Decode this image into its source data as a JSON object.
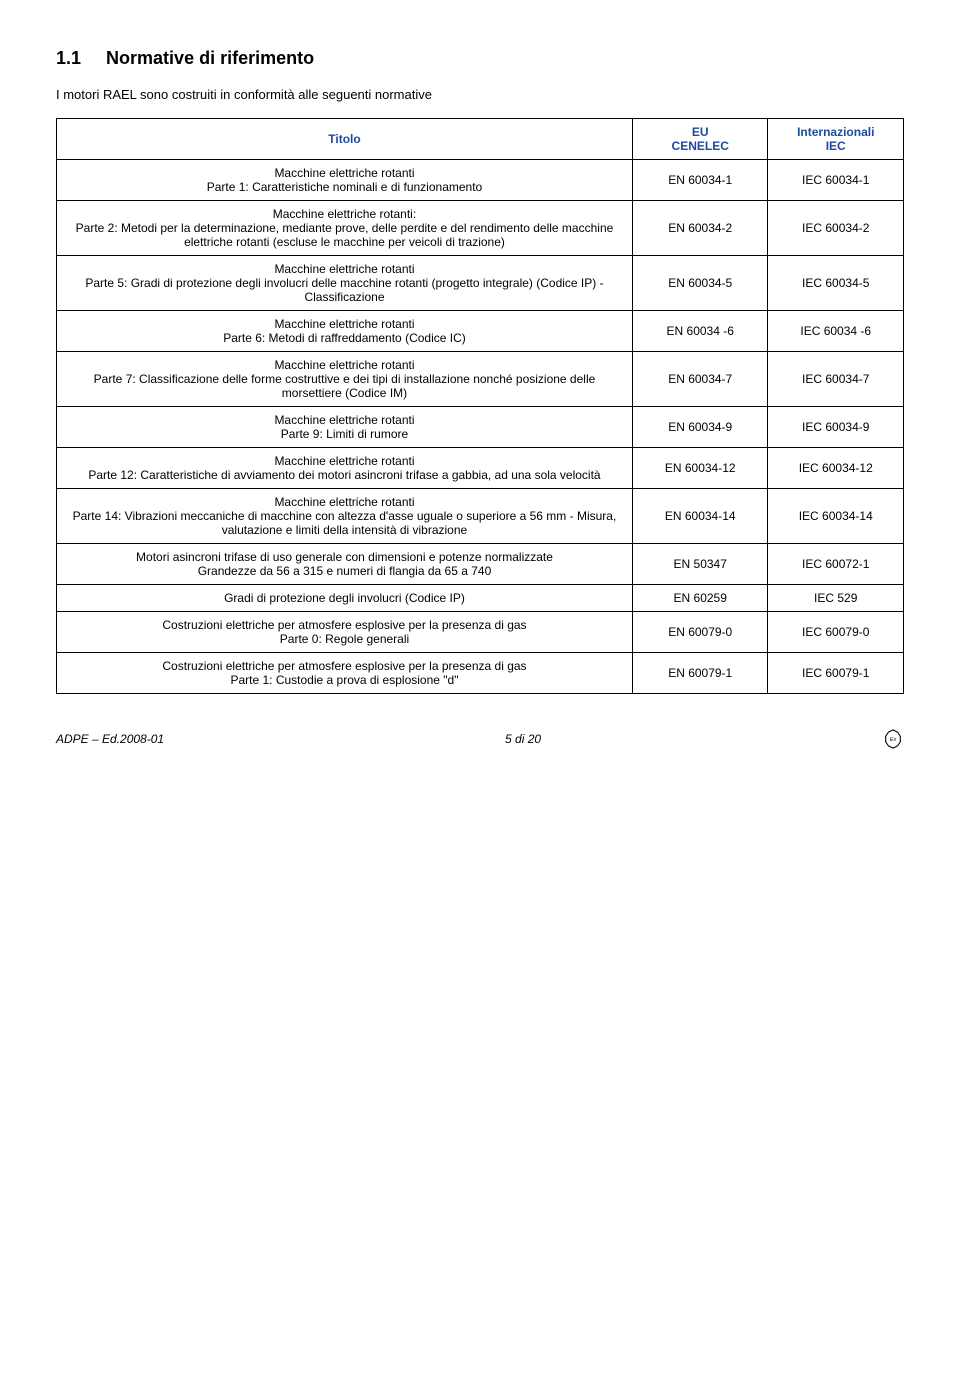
{
  "heading": {
    "number": "1.1",
    "title": "Normative di riferimento"
  },
  "intro": "I motori RAEL sono costruiti in conformità alle seguenti normative",
  "header": {
    "title": "Titolo",
    "eu": "EU\nCENELEC",
    "iec": "Internazionali\nIEC"
  },
  "rows": [
    {
      "title_lines": [
        "Macchine elettriche rotanti",
        "Parte 1: Caratteristiche nominali e di funzionamento"
      ],
      "eu": "EN 60034-1",
      "iec": "IEC 60034-1"
    },
    {
      "title_lines": [
        "Macchine elettriche rotanti:",
        "Parte 2: Metodi per la determinazione, mediante prove, delle perdite e del rendimento delle macchine elettriche rotanti (escluse le macchine per veicoli di trazione)"
      ],
      "eu": "EN 60034-2",
      "iec": "IEC 60034-2"
    },
    {
      "title_lines": [
        "Macchine elettriche rotanti",
        "Parte 5: Gradi di protezione degli involucri delle macchine rotanti (progetto integrale) (Codice IP) - Classificazione"
      ],
      "eu": "EN 60034-5",
      "iec": "IEC 60034-5"
    },
    {
      "title_lines": [
        "Macchine elettriche rotanti",
        "Parte 6: Metodi di raffreddamento (Codice IC)"
      ],
      "eu": "EN 60034 -6",
      "iec": "IEC 60034 -6"
    },
    {
      "title_lines": [
        "Macchine elettriche rotanti",
        "Parte 7: Classificazione delle forme costruttive e dei tipi di installazione nonché posizione delle morsettiere (Codice IM)"
      ],
      "eu": "EN 60034-7",
      "iec": "IEC 60034-7"
    },
    {
      "title_lines": [
        "Macchine elettriche rotanti",
        "Parte 9: Limiti di rumore"
      ],
      "eu": "EN 60034-9",
      "iec": "IEC 60034-9"
    },
    {
      "title_lines": [
        "Macchine elettriche rotanti",
        "Parte 12: Caratteristiche di avviamento dei motori asincroni trifase a gabbia, ad una sola velocità"
      ],
      "eu": "EN 60034-12",
      "iec": "IEC 60034-12"
    },
    {
      "title_lines": [
        "Macchine elettriche rotanti",
        "Parte 14: Vibrazioni meccaniche di macchine con altezza d'asse uguale o superiore a 56 mm - Misura, valutazione e limiti della intensità di vibrazione"
      ],
      "eu": "EN 60034-14",
      "iec": "IEC 60034-14"
    },
    {
      "title_lines": [
        "Motori asincroni trifase di uso generale con dimensioni e potenze normalizzate",
        "Grandezze da 56 a 315 e numeri di flangia da 65 a 740"
      ],
      "eu": "EN 50347",
      "iec": "IEC 60072-1"
    },
    {
      "title_lines": [
        "Gradi di protezione degli involucri (Codice IP)"
      ],
      "eu": "EN 60259",
      "iec": "IEC 529"
    },
    {
      "title_lines": [
        "Costruzioni elettriche per atmosfere esplosive per la presenza di gas",
        "Parte 0: Regole generali"
      ],
      "eu": "EN 60079-0",
      "iec": "IEC 60079-0"
    },
    {
      "title_lines": [
        "Costruzioni elettriche per atmosfere esplosive per la presenza di gas",
        "Parte 1: Custodie a prova di esplosione \"d\""
      ],
      "eu": "EN 60079-1",
      "iec": "IEC 60079-1"
    }
  ],
  "footer": {
    "left": "ADPE – Ed.2008-01",
    "center": "5 di 20"
  },
  "colors": {
    "header_text": "#1f4aa0",
    "border": "#000000",
    "bg": "#ffffff",
    "text": "#000000"
  }
}
